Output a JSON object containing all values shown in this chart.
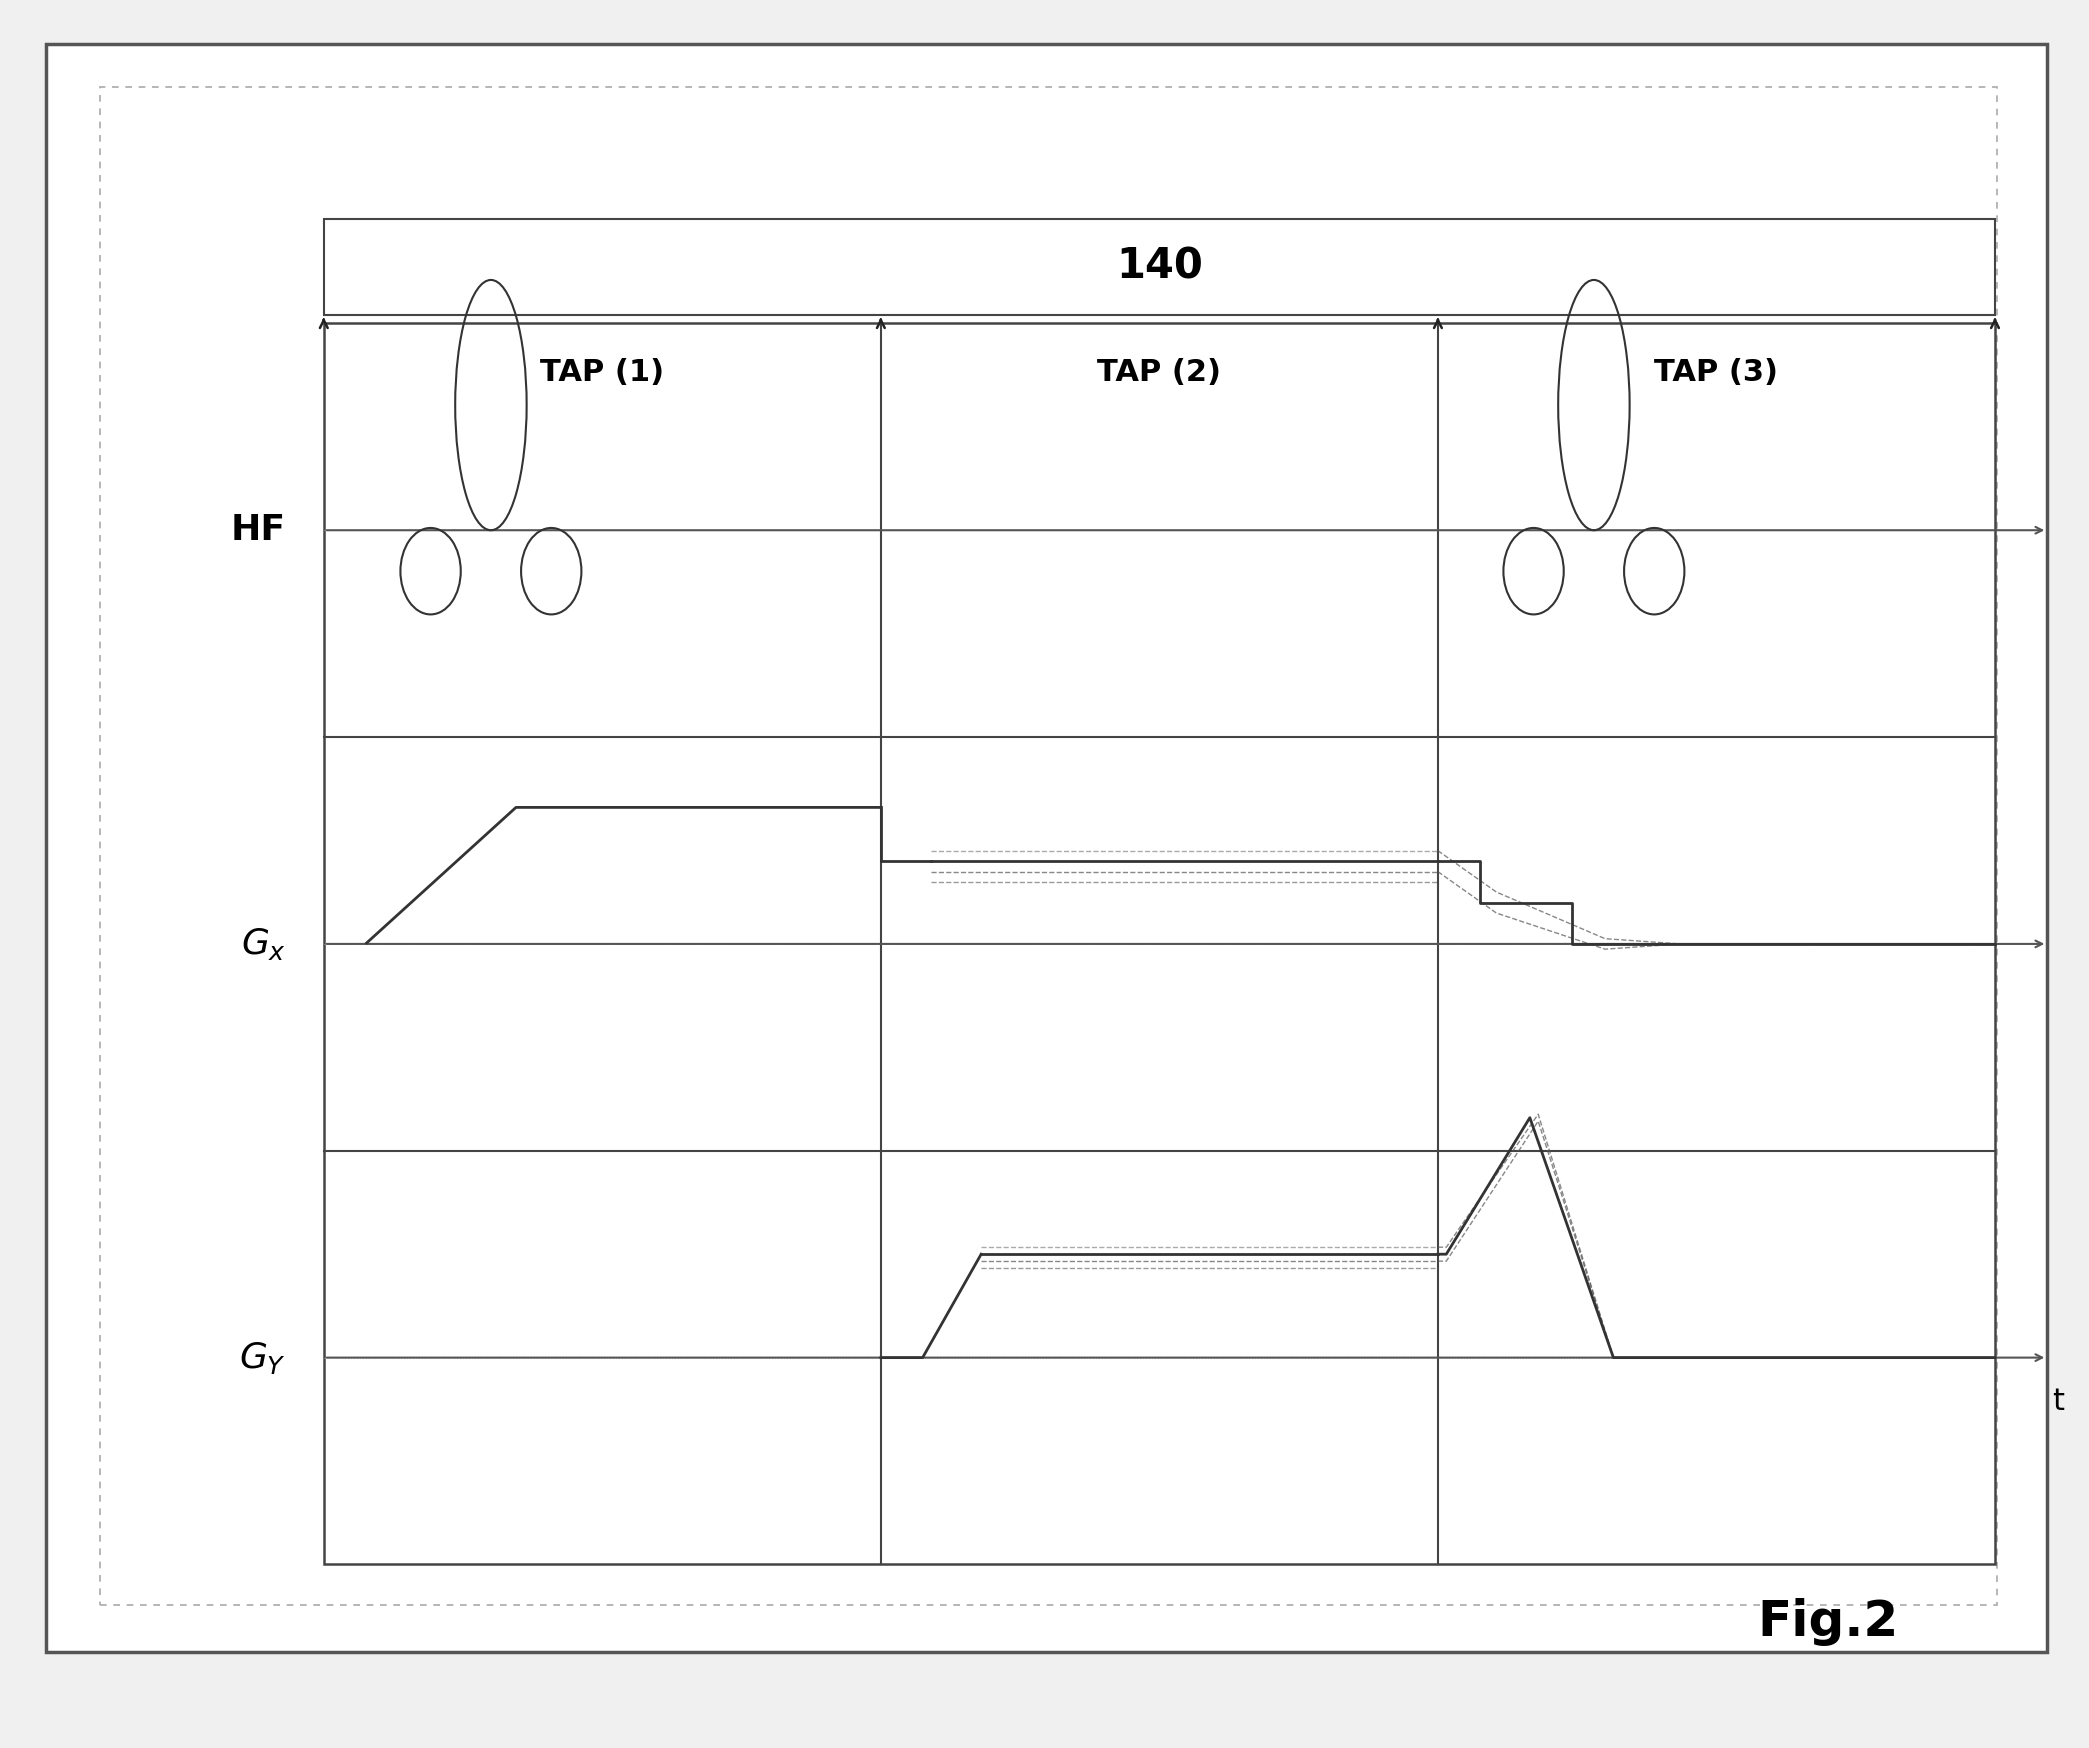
{
  "bg_color": "#f0f0f0",
  "outer_border_color": "#555555",
  "inner_border_color": "#888888",
  "diagram_border_color": "#444444",
  "fig_label": "Fig.2",
  "label_140": "140",
  "tap_labels": [
    "TAP (1)",
    "TAP (2)",
    "TAP (3)"
  ],
  "time_label": "t",
  "arrow_color": "#222222",
  "signal_color": "#333333",
  "dashed_color": "#555555",
  "axis_arrow_color": "#555555",
  "dotted_bg_color": "#bbbbbb"
}
